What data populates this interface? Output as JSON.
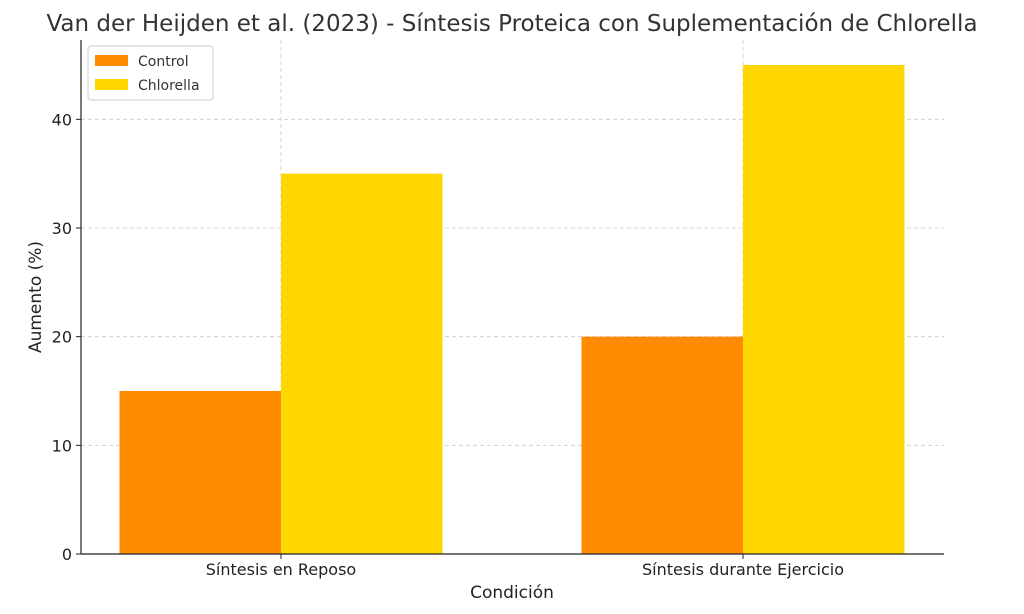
{
  "chart_data": {
    "type": "bar",
    "title": "Van der Heijden et al. (2023) - Síntesis Proteica con Suplementación de Chlorella",
    "xlabel": "Condición",
    "ylabel": "Aumento (%)",
    "categories": [
      "Síntesis en Reposo",
      "Síntesis durante Ejercicio"
    ],
    "series": [
      {
        "name": "Control",
        "values": [
          15,
          20
        ],
        "color": "#ff8c00"
      },
      {
        "name": "Chlorella",
        "values": [
          35,
          45
        ],
        "color": "#ffd700"
      }
    ],
    "ylim": [
      0,
      47.3
    ],
    "yticks": [
      0,
      10,
      20,
      30,
      40
    ],
    "grid": true,
    "legend_position": "top-left"
  }
}
